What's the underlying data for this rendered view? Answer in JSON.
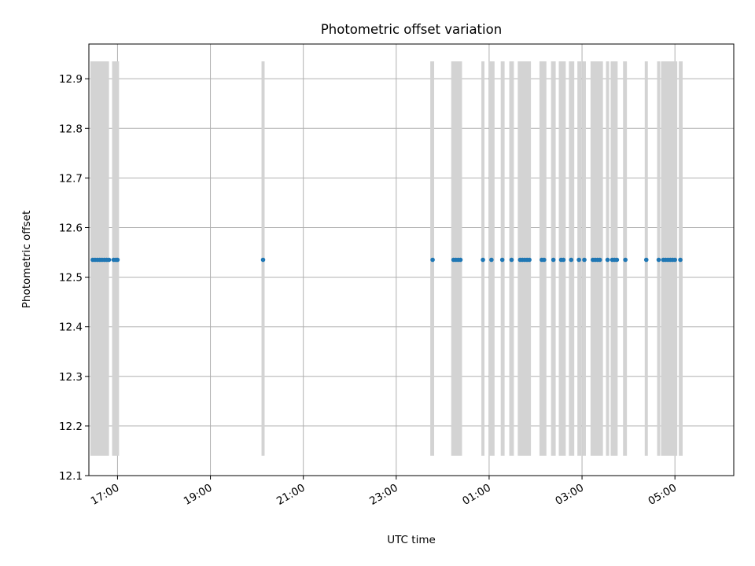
{
  "chart_data": {
    "type": "scatter",
    "title": "Photometric offset variation",
    "xlabel": "UTC time",
    "ylabel": "Photometric offset",
    "x_axis_type": "time",
    "xlim": [
      "16:23",
      "30:16"
    ],
    "ylim": [
      12.1,
      12.97
    ],
    "x_ticks": [
      {
        "value": "17:00",
        "label": "17:00"
      },
      {
        "value": "19:00",
        "label": "19:00"
      },
      {
        "value": "21:00",
        "label": "21:00"
      },
      {
        "value": "23:00",
        "label": "23:00"
      },
      {
        "value": "25:00",
        "label": "01:00"
      },
      {
        "value": "27:00",
        "label": "03:00"
      },
      {
        "value": "29:00",
        "label": "05:00"
      }
    ],
    "y_ticks": [
      12.1,
      12.2,
      12.3,
      12.4,
      12.5,
      12.6,
      12.7,
      12.8,
      12.9
    ],
    "x_tick_rotation": 30,
    "grid": true,
    "legend": "none",
    "band_range": [
      12.14,
      12.935
    ],
    "band_color": "#d3d3d3",
    "point_color": "#1f77b4",
    "bands": [
      [
        "16:25",
        "16:49"
      ],
      [
        "16:53",
        "17:02"
      ],
      [
        "20:06",
        "20:10"
      ],
      [
        "23:44",
        "23:49"
      ],
      [
        "00:11",
        "00:25"
      ],
      [
        "00:50",
        "00:54"
      ],
      [
        "01:00",
        "01:07"
      ],
      [
        "01:15",
        "01:20"
      ],
      [
        "01:26",
        "01:32"
      ],
      [
        "01:37",
        "01:54"
      ],
      [
        "02:05",
        "02:14"
      ],
      [
        "02:20",
        "02:26"
      ],
      [
        "02:30",
        "02:39"
      ],
      [
        "02:43",
        "02:50"
      ],
      [
        "02:54",
        "02:59"
      ],
      [
        "03:00",
        "03:05"
      ],
      [
        "03:11",
        "03:27"
      ],
      [
        "03:31",
        "03:35"
      ],
      [
        "03:37",
        "03:46"
      ],
      [
        "03:53",
        "03:58"
      ],
      [
        "04:21",
        "04:25"
      ],
      [
        "04:37",
        "04:41"
      ],
      [
        "04:42",
        "05:03"
      ],
      [
        "05:05",
        "05:10"
      ]
    ],
    "series": [
      {
        "x": [
          "16:28",
          "16:31",
          "16:34",
          "16:37",
          "16:40",
          "16:43",
          "16:46",
          "16:49",
          "16:55",
          "16:58",
          "17:00",
          "20:08",
          "23:47",
          "00:14",
          "00:17",
          "00:20",
          "00:23",
          "00:52",
          "01:03",
          "01:17",
          "01:29",
          "01:40",
          "01:43",
          "01:46",
          "01:49",
          "01:52",
          "02:08",
          "02:11",
          "02:23",
          "02:33",
          "02:36",
          "02:46",
          "02:56",
          "03:03",
          "03:14",
          "03:17",
          "03:20",
          "03:23",
          "03:33",
          "03:39",
          "03:42",
          "03:45",
          "03:56",
          "04:23",
          "04:39",
          "04:45",
          "04:48",
          "04:51",
          "04:54",
          "04:57",
          "05:00",
          "05:07"
        ],
        "y": [
          12.535,
          12.535,
          12.535,
          12.535,
          12.535,
          12.535,
          12.535,
          12.535,
          12.535,
          12.535,
          12.535,
          12.535,
          12.535,
          12.535,
          12.535,
          12.535,
          12.535,
          12.535,
          12.535,
          12.535,
          12.535,
          12.535,
          12.535,
          12.535,
          12.535,
          12.535,
          12.535,
          12.535,
          12.535,
          12.535,
          12.535,
          12.535,
          12.535,
          12.535,
          12.535,
          12.535,
          12.535,
          12.535,
          12.535,
          12.535,
          12.535,
          12.535,
          12.535,
          12.535,
          12.535,
          12.535,
          12.535,
          12.535,
          12.535,
          12.535,
          12.535,
          12.535
        ]
      }
    ]
  }
}
